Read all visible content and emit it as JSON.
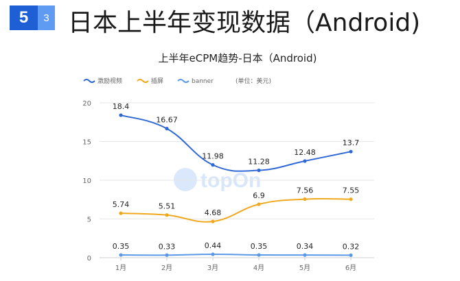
{
  "header": {
    "badge_main": "5",
    "badge_sub": "3",
    "title": "日本上半年变现数据（Android)"
  },
  "colors": {
    "badge_main": "#1f5fd6",
    "badge_sub": "#5f9bf2",
    "series": [
      "#2f68d4",
      "#f0a81e",
      "#5b98e8"
    ]
  },
  "watermark": {
    "text": "topOn",
    "icon": "topon-logo-icon"
  },
  "chart_data": {
    "type": "line",
    "smooth": true,
    "title": "上半年eCPM趋势-日本（Android)",
    "unit_note": "(单位：美元)",
    "categories": [
      "1月",
      "2月",
      "3月",
      "4月",
      "5月",
      "6月"
    ],
    "series": [
      {
        "name": "激励视频",
        "values": [
          18.4,
          16.67,
          11.98,
          11.28,
          12.48,
          13.7
        ]
      },
      {
        "name": "插屏",
        "values": [
          5.74,
          5.51,
          4.68,
          6.9,
          7.56,
          7.55
        ]
      },
      {
        "name": "banner",
        "values": [
          0.35,
          0.33,
          0.44,
          0.35,
          0.34,
          0.32
        ]
      }
    ],
    "ylim": [
      0,
      20
    ],
    "yticks": [
      0,
      5,
      10,
      15,
      20
    ],
    "grid": true,
    "legend_position": "top-left",
    "data_labels": true
  }
}
